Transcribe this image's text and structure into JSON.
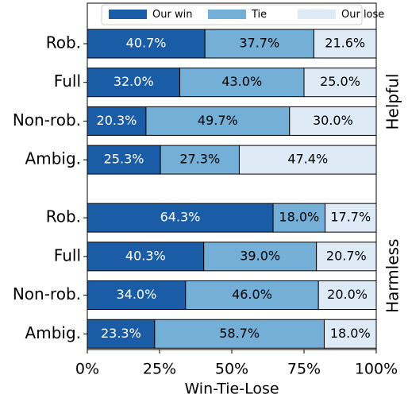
{
  "chart_data": {
    "type": "bar",
    "orientation": "horizontal",
    "stacked": true,
    "x_label": "Win-Tie-Lose",
    "categories": [
      "Rob.",
      "Full",
      "Non-rob.",
      "Ambig.",
      "Rob.",
      "Full",
      "Non-rob.",
      "Ambig."
    ],
    "group_labels": [
      "Helpful",
      "Harmless"
    ],
    "series": [
      {
        "name": "Our win",
        "color": "#1a5ca6",
        "values": [
          40.7,
          32.0,
          20.3,
          25.3,
          64.3,
          40.3,
          34.0,
          23.3
        ],
        "value_labels": [
          "40.7%",
          "32.0%",
          "20.3%",
          "25.3%",
          "64.3%",
          "40.3%",
          "34.0%",
          "23.3%"
        ]
      },
      {
        "name": "Tie",
        "color": "#74afd8",
        "values": [
          37.7,
          43.0,
          49.7,
          27.3,
          18.0,
          39.0,
          46.0,
          58.7
        ],
        "value_labels": [
          "37.7%",
          "43.0%",
          "49.7%",
          "27.3%",
          "18.0%",
          "39.0%",
          "46.0%",
          "58.7%"
        ]
      },
      {
        "name": "Our lose",
        "color": "#deebf7",
        "values": [
          21.6,
          25.0,
          30.0,
          47.4,
          17.7,
          20.7,
          20.0,
          18.0
        ],
        "value_labels": [
          "21.6%",
          "25.0%",
          "30.0%",
          "47.4%",
          "17.7%",
          "20.7%",
          "20.0%",
          "18.0%"
        ]
      }
    ],
    "xlim": [
      0,
      100
    ],
    "xticks": [
      {
        "value": 0,
        "label": "0%"
      },
      {
        "value": 25,
        "label": "25%"
      },
      {
        "value": 50,
        "label": "50%"
      },
      {
        "value": 75,
        "label": "75%"
      },
      {
        "value": 100,
        "label": "100%"
      }
    ],
    "legend": "upper center"
  }
}
